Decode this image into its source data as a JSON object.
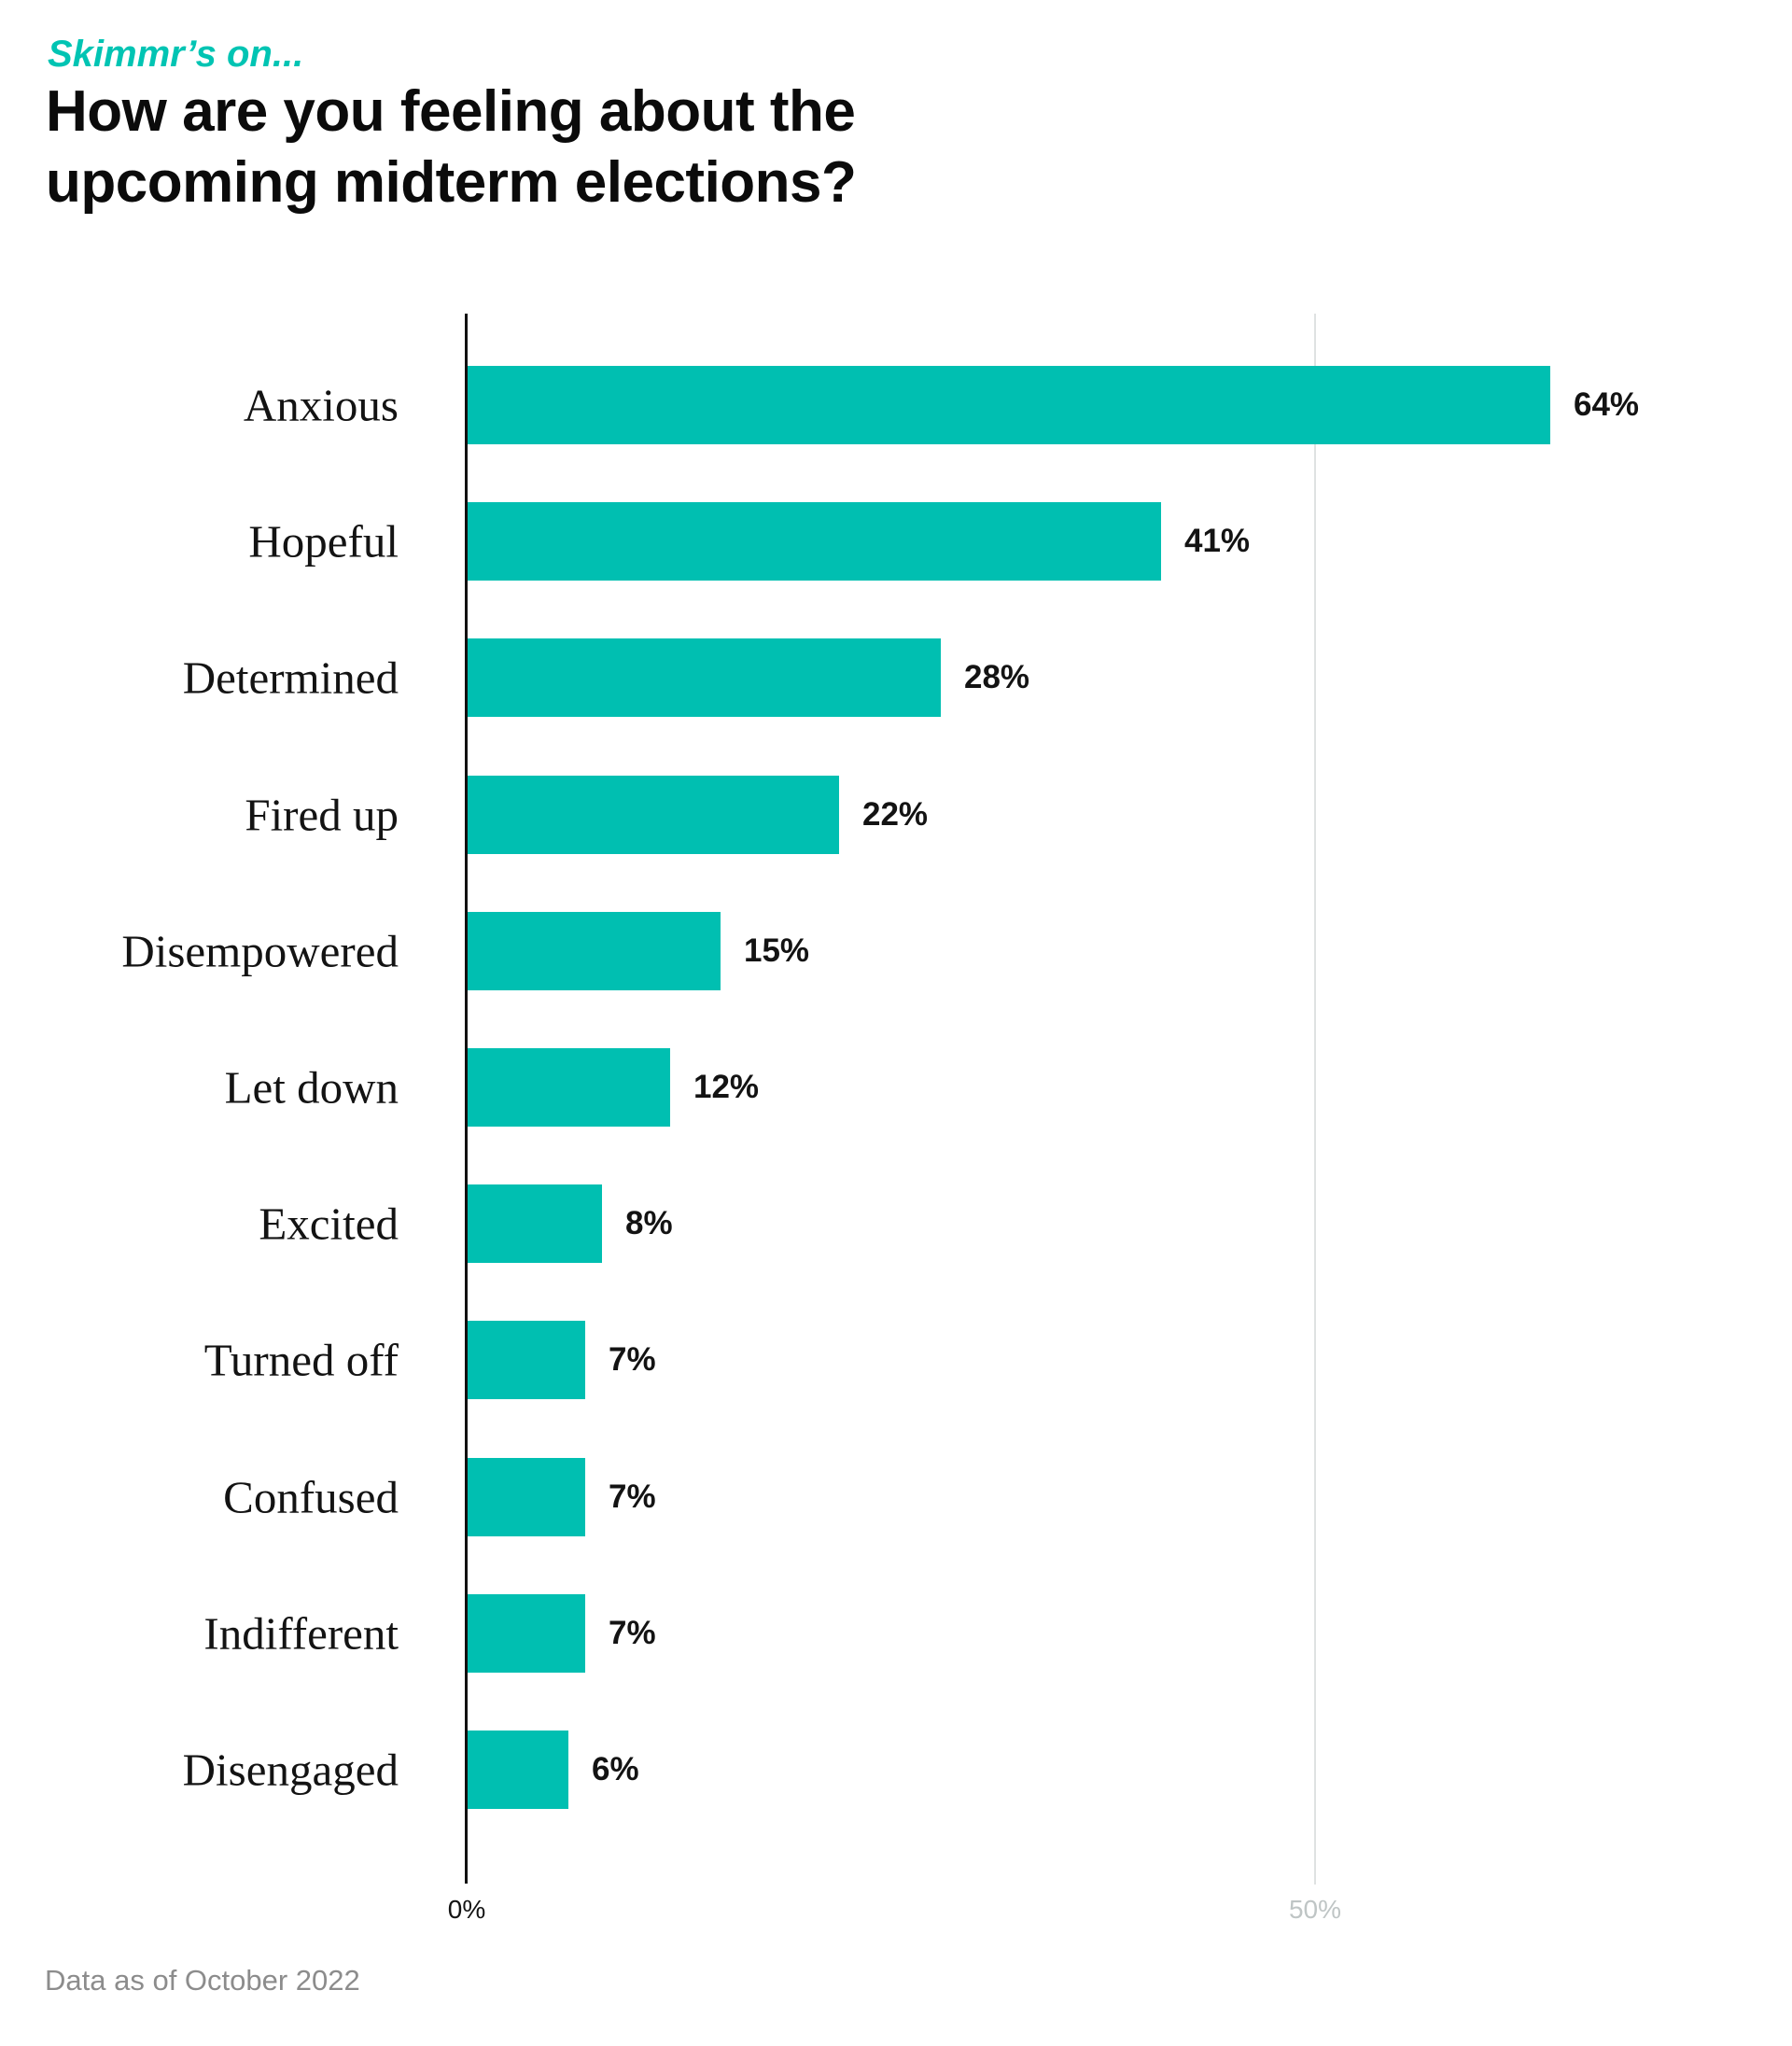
{
  "header": {
    "kicker": "Skimmr’s on...",
    "title_line1": "How are you feeling about the",
    "title_line2": "upcoming midterm elections?"
  },
  "chart_data": {
    "type": "bar",
    "orientation": "horizontal",
    "title": "How are you feeling about the upcoming midterm elections?",
    "categories": [
      "Anxious",
      "Hopeful",
      "Determined",
      "Fired up",
      "Disempowered",
      "Let down",
      "Excited",
      "Turned off",
      "Confused",
      "Indifferent",
      "Disengaged"
    ],
    "values": [
      64,
      41,
      28,
      22,
      15,
      12,
      8,
      7,
      7,
      7,
      6
    ],
    "value_labels": [
      "64%",
      "41%",
      "28%",
      "22%",
      "15%",
      "12%",
      "8%",
      "7%",
      "7%",
      "7%",
      "6%"
    ],
    "xlabel": "",
    "ylabel": "",
    "xlim": [
      0,
      78
    ],
    "x_ticks": [
      {
        "value": 0,
        "label": "0%"
      },
      {
        "value": 50,
        "label": "50%"
      }
    ],
    "grid": "single vertical gridline at 50%",
    "legend": "none",
    "bar_color": "#00BFB1"
  },
  "footer": {
    "note": "Data as of October 2022"
  },
  "colors": {
    "kicker_teal": "#00C4B3",
    "bar_teal": "#00BFB1",
    "title_text": "#0B0B0B",
    "body_text": "#131313",
    "muted_gray": "#8C8C8C",
    "tick_muted": "#BFC5C5",
    "gridline": "#DFE2E2",
    "axis_line": "#111111",
    "background": "#FFFFFF"
  }
}
